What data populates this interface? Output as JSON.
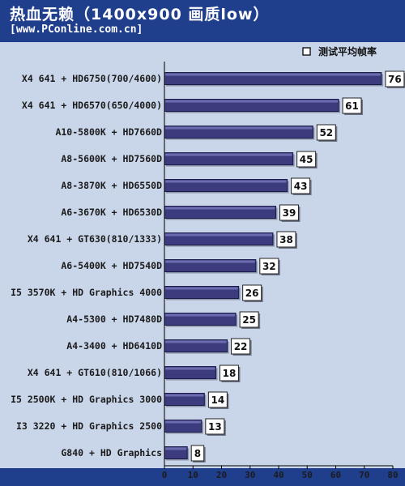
{
  "header": {
    "title": "热血无赖（1400x900 画质low）",
    "subtitle": "[www.PConline.com.cn]"
  },
  "colors": {
    "frame": "#1f3f8c",
    "plot_background": "#c9d5e9",
    "bar_fill": "#3b3b7d",
    "bar_highlight": "#6b6bb0",
    "gridline": "#000000"
  },
  "chart_data": {
    "type": "bar",
    "orientation": "horizontal",
    "legend": {
      "label": "测试平均帧率",
      "placement": "top-right"
    },
    "xlim": [
      0,
      80
    ],
    "xticks": [
      0,
      10,
      20,
      30,
      40,
      50,
      60,
      70,
      80
    ],
    "grid": false,
    "categories": [
      "X4 641 + HD6750(700/4600)",
      "X4 641 + HD6570(650/4000)",
      "A10-5800K + HD7660D",
      "A8-5600K + HD7560D",
      "A8-3870K + HD6550D",
      "A6-3670K + HD6530D",
      "X4 641 + GT630(810/1333)",
      "A6-5400K + HD7540D",
      "I5 3570K + HD Graphics 4000",
      "A4-5300 + HD7480D",
      "A4-3400 + HD6410D",
      "X4 641 + GT610(810/1066)",
      "I5 2500K + HD Graphics 3000",
      "I3 3220 + HD Graphics 2500",
      "G840 + HD Graphics"
    ],
    "series": [
      {
        "name": "测试平均帧率",
        "values": [
          76,
          61,
          52,
          45,
          43,
          39,
          38,
          32,
          26,
          25,
          22,
          18,
          14,
          13,
          8
        ]
      }
    ]
  }
}
